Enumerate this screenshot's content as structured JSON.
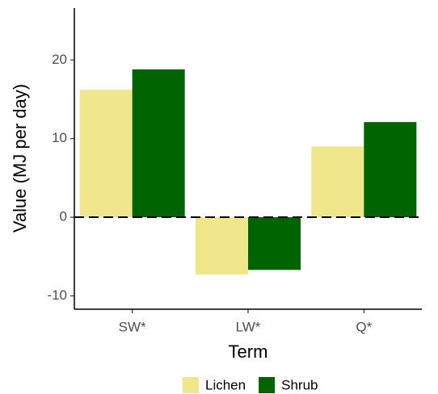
{
  "chart_data": {
    "type": "bar",
    "x_label": "Term",
    "y_label": "Value (MJ per day)",
    "categories": [
      "SW*",
      "LW*",
      "Q*"
    ],
    "series": [
      {
        "name": "Lichen",
        "color": "#f0e68c",
        "values": [
          16.2,
          -7.3,
          9.0
        ]
      },
      {
        "name": "Shrub",
        "color": "#006400",
        "values": [
          18.8,
          -6.7,
          12.1
        ]
      }
    ],
    "ylim": [
      -11.7,
      26.6
    ],
    "yticks": [
      -10,
      0,
      10,
      20
    ],
    "grid": false,
    "legend": "bottom"
  }
}
